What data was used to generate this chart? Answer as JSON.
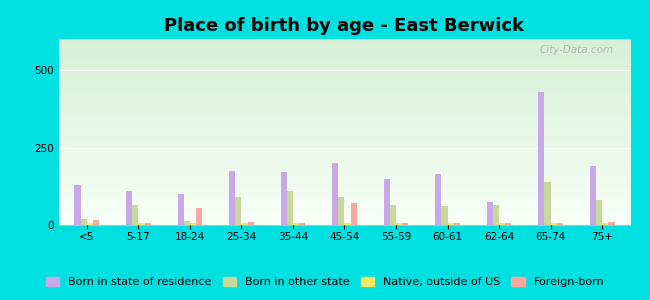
{
  "title": "Place of birth by age - East Berwick",
  "categories": [
    "<5",
    "5-17",
    "18-24",
    "25-34",
    "35-44",
    "45-54",
    "55-59",
    "60-61",
    "62-64",
    "65-74",
    "75+"
  ],
  "series": {
    "Born in state of residence": [
      130,
      110,
      100,
      175,
      172,
      200,
      150,
      165,
      75,
      430,
      190
    ],
    "Born in other state": [
      20,
      65,
      12,
      90,
      110,
      90,
      65,
      60,
      65,
      140,
      80
    ],
    "Native, outside of US": [
      5,
      5,
      5,
      5,
      5,
      5,
      5,
      5,
      5,
      5,
      5
    ],
    "Foreign-born": [
      15,
      5,
      55,
      10,
      5,
      70,
      5,
      5,
      5,
      5,
      10
    ]
  },
  "colors": {
    "Born in state of residence": "#c8a8e8",
    "Born in other state": "#c8d898",
    "Native, outside of US": "#f0e860",
    "Foreign-born": "#f8a8a0"
  },
  "ylim": [
    0,
    600
  ],
  "yticks": [
    0,
    250,
    500
  ],
  "background_top": "#d8f0d8",
  "background_bottom": "#f8fff8",
  "outer_background": "#00e0e0",
  "bar_width": 0.12,
  "title_fontsize": 13,
  "tick_fontsize": 7.5,
  "legend_fontsize": 8,
  "watermark": "City-Data.com"
}
